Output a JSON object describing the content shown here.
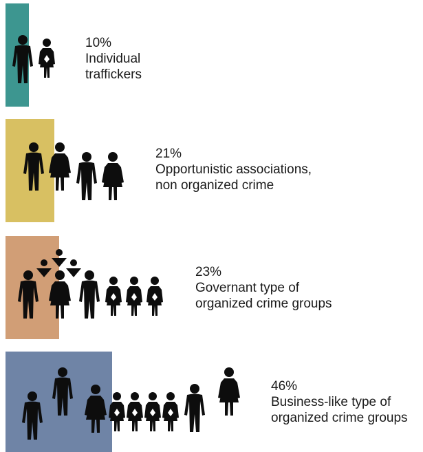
{
  "chart_data": {
    "type": "bar",
    "categories": [
      "Individual traffickers",
      "Opportunistic associations, non organized crime",
      "Governant type of organized crime groups",
      "Business-like type of organized crime groups"
    ],
    "values": [
      10,
      21,
      23,
      46
    ],
    "unit": "%",
    "items": [
      {
        "value_label": "10%",
        "lines": [
          "Individual",
          "traffickers"
        ],
        "color": "#3d9690"
      },
      {
        "value_label": "21%",
        "lines": [
          "Opportunistic associations,",
          "non organized crime"
        ],
        "color": "#d8c062"
      },
      {
        "value_label": "23%",
        "lines": [
          "Governant type of",
          "organized crime groups"
        ],
        "color": "#d19e76"
      },
      {
        "value_label": "46%",
        "lines": [
          "Business-like type of",
          "organized crime groups"
        ],
        "color": "#6f84a6"
      }
    ],
    "icons": [
      "man-icon",
      "woman-icon",
      "small-woman-icon",
      "boss-icon"
    ]
  }
}
